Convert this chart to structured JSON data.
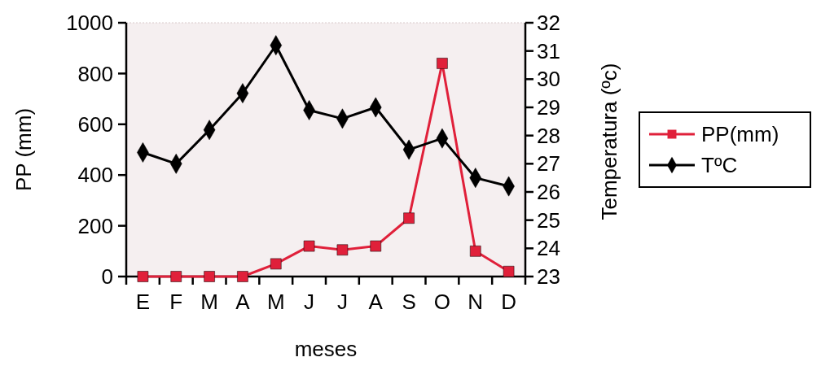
{
  "chart_data": {
    "type": "line",
    "xlabel": "meses",
    "ylabel": "PP (mm)",
    "y2label": "Temperatura (ºc)",
    "categories": [
      "E",
      "F",
      "M",
      "A",
      "M",
      "J",
      "J",
      "A",
      "S",
      "O",
      "N",
      "D"
    ],
    "series": [
      {
        "name": "PP(mm)",
        "color": "#e0203a",
        "marker": "square",
        "values": [
          0,
          0,
          0,
          0,
          50,
          120,
          105,
          120,
          230,
          840,
          100,
          20
        ]
      },
      {
        "name": "TºC",
        "color": "#000000",
        "marker": "diamond",
        "axis": "y2",
        "values": [
          27.4,
          27.0,
          28.2,
          29.5,
          31.2,
          28.9,
          28.6,
          29.0,
          27.5,
          27.9,
          26.5,
          26.2
        ]
      }
    ],
    "ylim": [
      0,
      1000
    ],
    "yticks": [
      0,
      200,
      400,
      600,
      800,
      1000
    ],
    "y2lim": [
      23,
      32
    ],
    "y2ticks": [
      23,
      24,
      25,
      26,
      27,
      28,
      29,
      30,
      31,
      32
    ],
    "grid": false,
    "legend": "right",
    "line_style": "solid"
  }
}
